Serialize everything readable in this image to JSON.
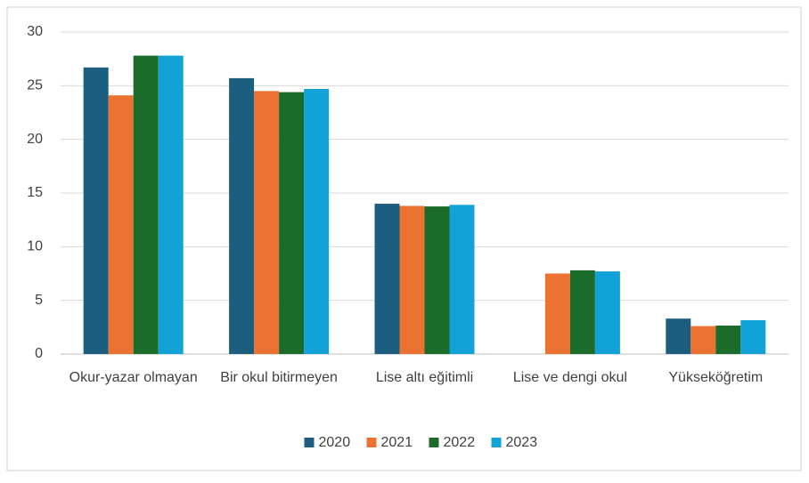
{
  "chart_data": {
    "type": "bar",
    "categories": [
      "Okur-yazar olmayan",
      "Bir okul bitirmeyen",
      "Lise altı eğitimli",
      "Lise ve dengi okul",
      "Yükseköğretim"
    ],
    "series": [
      {
        "name": "2020",
        "color": "#1b5e80",
        "values": [
          26.7,
          25.7,
          14.0,
          null,
          3.3
        ]
      },
      {
        "name": "2021",
        "color": "#ec7232",
        "values": [
          24.1,
          24.5,
          13.8,
          7.5,
          2.6
        ]
      },
      {
        "name": "2022",
        "color": "#1b6b2b",
        "values": [
          27.8,
          24.4,
          13.75,
          7.8,
          2.65
        ]
      },
      {
        "name": "2023",
        "color": "#12a2d8",
        "values": [
          27.8,
          24.7,
          13.9,
          7.7,
          3.15
        ]
      }
    ],
    "ylim": [
      0,
      30
    ],
    "yticks": [
      0,
      5,
      10,
      15,
      20,
      25,
      30
    ],
    "grid": true,
    "legend": "bottom"
  }
}
